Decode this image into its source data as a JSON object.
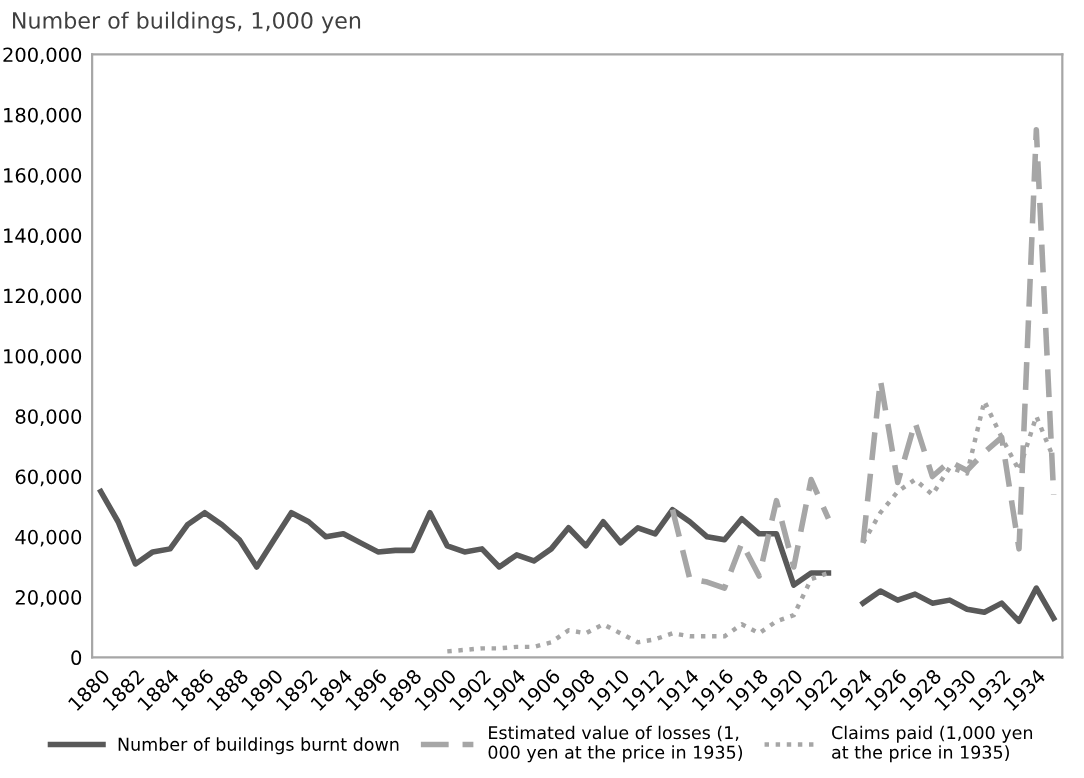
{
  "chart_data": {
    "type": "line",
    "ylabel": "Number of buildings, 1,000 yen",
    "categories": [
      "1880",
      null,
      "1882",
      null,
      "1884",
      null,
      "1886",
      null,
      "1888",
      null,
      "1890",
      null,
      "1892",
      null,
      "1894",
      null,
      "1896",
      null,
      "1898",
      null,
      "1900",
      null,
      "1902",
      null,
      "1904",
      null,
      "1906",
      null,
      "1908",
      null,
      "1910",
      null,
      "1912",
      null,
      "1914",
      null,
      "1916",
      null,
      "1918",
      null,
      "1920",
      null,
      "1922",
      null,
      "1924",
      null,
      "1926",
      null,
      "1928",
      null,
      "1930",
      null,
      "1932",
      null,
      "1934",
      null
    ],
    "series": [
      {
        "name": "Number of buildings burnt down",
        "color": "#595959",
        "line_style": "solid",
        "values": [
          55000,
          45000,
          31000,
          35000,
          36000,
          44000,
          48000,
          44000,
          39000,
          30000,
          39000,
          48000,
          45000,
          40000,
          41000,
          38000,
          35000,
          35500,
          35500,
          48000,
          37000,
          35000,
          36000,
          30000,
          34000,
          32000,
          36000,
          43000,
          37000,
          45000,
          38000,
          43000,
          41000,
          49000,
          45000,
          40000,
          39000,
          46000,
          41000,
          41000,
          24000,
          28000,
          28000,
          null,
          18000,
          22000,
          19000,
          21000,
          18000,
          19000,
          16000,
          15000,
          18000,
          12000,
          23000,
          13000
        ]
      },
      {
        "name": "Estimated value of losses (1, 000 yen at the price in 1935)",
        "color": "#a6a6a6",
        "line_style": "dashed",
        "values": [
          null,
          null,
          null,
          null,
          null,
          null,
          null,
          null,
          null,
          null,
          null,
          null,
          null,
          null,
          null,
          null,
          null,
          null,
          null,
          null,
          null,
          null,
          null,
          null,
          null,
          null,
          null,
          null,
          null,
          null,
          null,
          null,
          null,
          49000,
          26000,
          25000,
          23000,
          38000,
          27000,
          52000,
          30000,
          59000,
          46000,
          null,
          38000,
          92000,
          58000,
          78000,
          60000,
          65000,
          62000,
          68000,
          73000,
          36000,
          175000,
          54000
        ]
      },
      {
        "name": "Claims paid (1,000 yen at the price in 1935)",
        "color": "#a6a6a6",
        "line_style": "dotted",
        "values": [
          null,
          null,
          null,
          null,
          null,
          null,
          null,
          null,
          null,
          null,
          null,
          null,
          null,
          null,
          null,
          null,
          null,
          null,
          null,
          null,
          2000,
          2500,
          3000,
          3000,
          3500,
          3500,
          5000,
          9000,
          8000,
          11000,
          8000,
          5000,
          6000,
          8000,
          7000,
          7000,
          7000,
          11000,
          8000,
          12000,
          14000,
          26000,
          28000,
          null,
          38000,
          48000,
          55000,
          59000,
          54000,
          63000,
          61000,
          85000,
          73000,
          62000,
          80000,
          66000
        ]
      }
    ],
    "ylim": [
      0,
      200000
    ],
    "yticks": [
      {
        "value": 0,
        "label": "0"
      },
      {
        "value": 20000,
        "label": "20,000"
      },
      {
        "value": 40000,
        "label": "40,000"
      },
      {
        "value": 60000,
        "label": "60,000"
      },
      {
        "value": 80000,
        "label": "80,000"
      },
      {
        "value": 100000,
        "label": "100,000"
      },
      {
        "value": 120000,
        "label": "120,000"
      },
      {
        "value": 140000,
        "label": "140,000"
      },
      {
        "value": 160000,
        "label": "160,000"
      },
      {
        "value": 180000,
        "label": "180,000"
      },
      {
        "value": 200000,
        "label": "200,000"
      }
    ],
    "grid": false,
    "legend": "bottom"
  }
}
